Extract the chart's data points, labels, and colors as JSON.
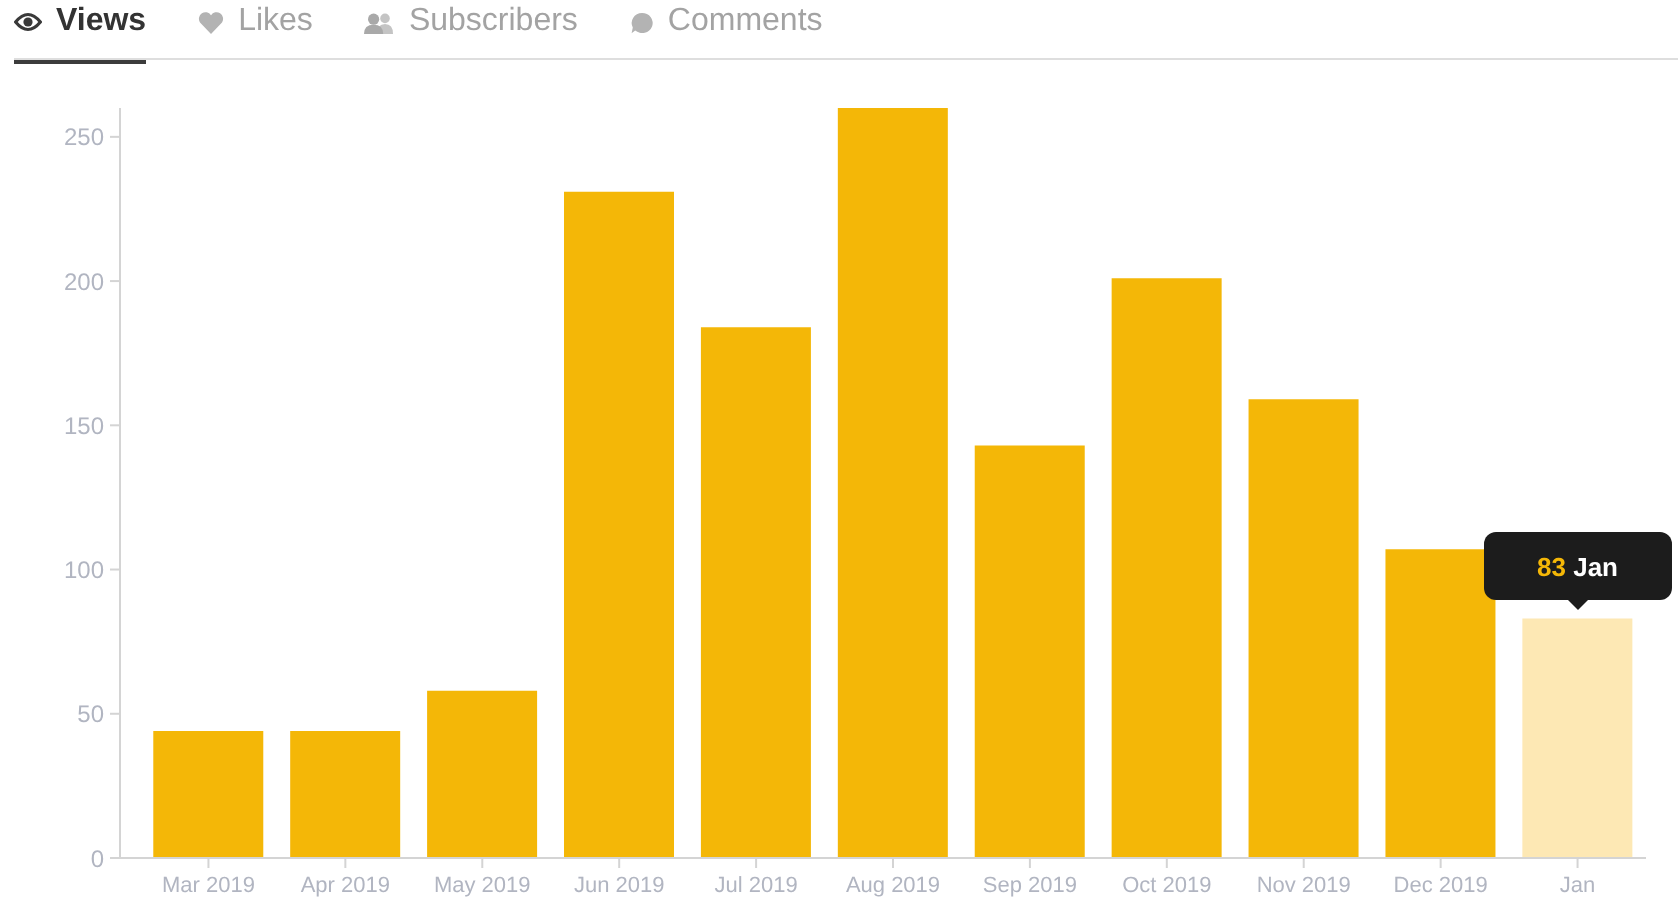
{
  "chart_data": {
    "type": "bar",
    "title": "Views",
    "categories": [
      "Mar 2019",
      "Apr 2019",
      "May 2019",
      "Jun 2019",
      "Jul 2019",
      "Aug 2019",
      "Sep 2019",
      "Oct 2019",
      "Nov 2019",
      "Dec 2019",
      "Jan"
    ],
    "values": [
      44,
      44,
      58,
      231,
      184,
      260,
      143,
      201,
      159,
      107,
      83
    ],
    "colors": [
      "#f4b707",
      "#f4b707",
      "#f4b707",
      "#f4b707",
      "#f4b707",
      "#f4b707",
      "#f4b707",
      "#f4b707",
      "#f4b707",
      "#f4b707",
      "#fde8b4"
    ],
    "ylim": [
      0,
      260
    ],
    "yticks": [
      0,
      50,
      100,
      150,
      200,
      250
    ],
    "annotations": [
      "Likes",
      "Subscribers",
      "Comments",
      {
        "text": "83 Jan",
        "x": "Jan",
        "y": 83
      }
    ]
  }
}
